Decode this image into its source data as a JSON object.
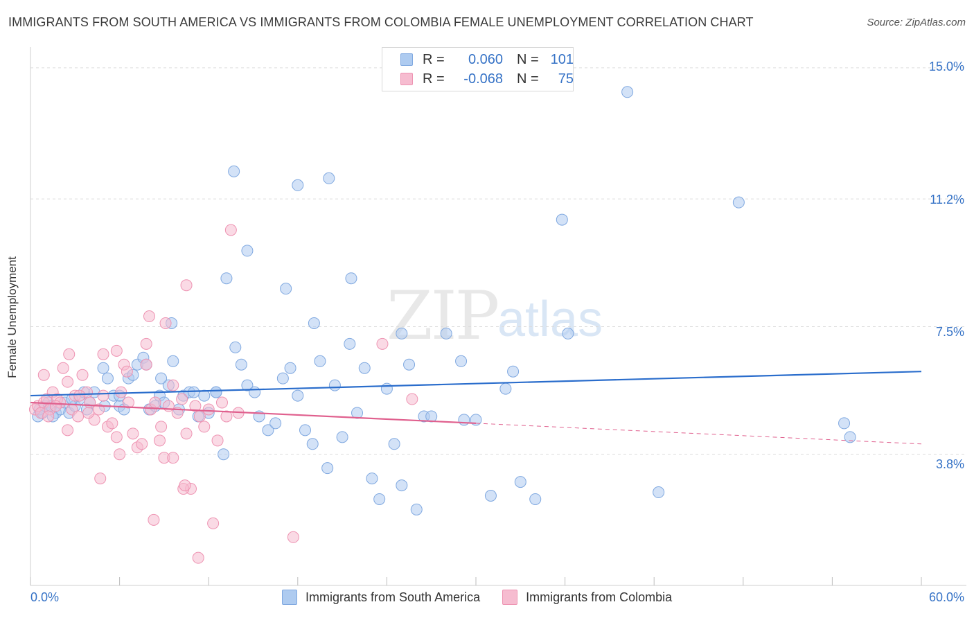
{
  "header": {
    "title": "IMMIGRANTS FROM SOUTH AMERICA VS IMMIGRANTS FROM COLOMBIA FEMALE UNEMPLOYMENT CORRELATION CHART",
    "source": "Source: ZipAtlas.com"
  },
  "watermark": {
    "zip": "ZIP",
    "atlas": "atlas"
  },
  "legend_top": {
    "row1": {
      "r_label": "R =",
      "r_value": "0.060",
      "n_label": "N =",
      "n_value": "101"
    },
    "row2": {
      "r_label": "R =",
      "r_value": "-0.068",
      "n_label": "N =",
      "n_value": "75"
    }
  },
  "colors": {
    "blue_fill": "#aecbf0",
    "blue_stroke": "#7fa8e0",
    "blue_line": "#2a6dcc",
    "pink_fill": "#f6bcd0",
    "pink_stroke": "#ee93b2",
    "pink_line": "#e0608e",
    "grid": "#dcdcdc",
    "axis_text": "#3572c6"
  },
  "chart_data": {
    "type": "scatter",
    "title": "IMMIGRANTS FROM SOUTH AMERICA VS IMMIGRANTS FROM COLOMBIA FEMALE UNEMPLOYMENT CORRELATION CHART",
    "xlabel": "",
    "ylabel": "Female Unemployment",
    "xlim": [
      0,
      60
    ],
    "ylim": [
      0,
      15.4
    ],
    "x_tick_labels": [
      "0.0%",
      "60.0%"
    ],
    "y_ticks": [
      {
        "value": 3.8,
        "label": "3.8%"
      },
      {
        "value": 7.5,
        "label": "7.5%"
      },
      {
        "value": 11.2,
        "label": "11.2%"
      },
      {
        "value": 15.0,
        "label": "15.0%"
      }
    ],
    "series": [
      {
        "name": "Immigrants from South America",
        "color": "blue",
        "R": 0.06,
        "N": 101,
        "trend": {
          "x0": 0,
          "y0": 5.5,
          "x1": 60,
          "y1": 6.2
        },
        "points": [
          [
            0.5,
            4.9
          ],
          [
            0.6,
            5.1
          ],
          [
            0.8,
            5.0
          ],
          [
            1.0,
            5.2
          ],
          [
            1.2,
            5.3
          ],
          [
            1.4,
            5.2
          ],
          [
            1.7,
            5.0
          ],
          [
            2.0,
            5.1
          ],
          [
            2.3,
            5.3
          ],
          [
            2.6,
            5.0
          ],
          [
            3.0,
            5.2
          ],
          [
            3.3,
            5.4
          ],
          [
            3.6,
            5.6
          ],
          [
            4.0,
            5.3
          ],
          [
            4.3,
            5.6
          ],
          [
            4.9,
            6.3
          ],
          [
            5.2,
            6.0
          ],
          [
            5.6,
            5.5
          ],
          [
            6.0,
            5.2
          ],
          [
            6.3,
            5.1
          ],
          [
            6.6,
            6.0
          ],
          [
            6.9,
            6.1
          ],
          [
            7.2,
            6.4
          ],
          [
            7.6,
            6.6
          ],
          [
            7.8,
            6.4
          ],
          [
            8.0,
            5.1
          ],
          [
            8.4,
            5.2
          ],
          [
            8.7,
            5.5
          ],
          [
            9.0,
            5.3
          ],
          [
            9.3,
            5.8
          ],
          [
            9.6,
            6.5
          ],
          [
            10.0,
            5.1
          ],
          [
            10.3,
            5.5
          ],
          [
            10.7,
            5.6
          ],
          [
            11.0,
            5.6
          ],
          [
            11.3,
            4.9
          ],
          [
            11.7,
            5.5
          ],
          [
            12.0,
            5.0
          ],
          [
            12.5,
            5.6
          ],
          [
            13.0,
            3.8
          ],
          [
            13.8,
            6.9
          ],
          [
            14.2,
            6.4
          ],
          [
            14.6,
            5.8
          ],
          [
            15.1,
            5.6
          ],
          [
            15.4,
            4.9
          ],
          [
            16.0,
            4.5
          ],
          [
            16.5,
            4.7
          ],
          [
            17.0,
            6.0
          ],
          [
            17.5,
            6.3
          ],
          [
            18.0,
            5.5
          ],
          [
            18.5,
            4.5
          ],
          [
            19.0,
            4.1
          ],
          [
            19.5,
            6.5
          ],
          [
            20.0,
            3.4
          ],
          [
            20.5,
            5.8
          ],
          [
            21.0,
            4.3
          ],
          [
            21.5,
            7.0
          ],
          [
            22.0,
            5.0
          ],
          [
            22.5,
            6.3
          ],
          [
            23.0,
            3.1
          ],
          [
            23.5,
            2.5
          ],
          [
            24.0,
            5.7
          ],
          [
            24.5,
            4.1
          ],
          [
            25.0,
            2.9
          ],
          [
            25.5,
            6.4
          ],
          [
            26.0,
            2.2
          ],
          [
            26.5,
            4.9
          ],
          [
            27.0,
            4.9
          ],
          [
            28.0,
            7.3
          ],
          [
            29.0,
            6.5
          ],
          [
            30.0,
            4.8
          ],
          [
            31.0,
            2.6
          ],
          [
            32.0,
            5.7
          ],
          [
            33.0,
            3.0
          ],
          [
            34.0,
            2.5
          ],
          [
            6.0,
            5.5
          ],
          [
            5.0,
            5.2
          ],
          [
            1.5,
            4.9
          ],
          [
            2.8,
            5.4
          ],
          [
            3.8,
            5.1
          ],
          [
            13.7,
            12.0
          ],
          [
            18.0,
            11.6
          ],
          [
            20.1,
            11.8
          ],
          [
            14.6,
            9.7
          ],
          [
            17.2,
            8.6
          ],
          [
            13.2,
            8.9
          ],
          [
            21.6,
            8.9
          ],
          [
            9.5,
            7.6
          ],
          [
            19.1,
            7.6
          ],
          [
            25.0,
            7.3
          ],
          [
            35.8,
            10.6
          ],
          [
            40.2,
            14.3
          ],
          [
            47.7,
            11.1
          ],
          [
            29.2,
            4.8
          ],
          [
            42.3,
            2.7
          ],
          [
            54.8,
            4.7
          ],
          [
            55.2,
            4.3
          ],
          [
            32.5,
            6.2
          ],
          [
            36.2,
            7.3
          ],
          [
            12.5,
            5.6
          ],
          [
            8.8,
            6.0
          ]
        ]
      },
      {
        "name": "Immigrants from Colombia",
        "color": "pink",
        "R": -0.068,
        "N": 75,
        "trend": {
          "x0": 0,
          "y0": 5.3,
          "x1": 30,
          "y1": 4.7,
          "dashed_to_x": 60,
          "dashed_to_y": 4.1
        },
        "points": [
          [
            0.3,
            5.1
          ],
          [
            0.5,
            5.2
          ],
          [
            0.7,
            5.0
          ],
          [
            0.9,
            5.3
          ],
          [
            1.1,
            5.4
          ],
          [
            1.3,
            5.1
          ],
          [
            1.5,
            5.6
          ],
          [
            1.8,
            5.4
          ],
          [
            2.0,
            5.3
          ],
          [
            2.2,
            6.3
          ],
          [
            2.5,
            5.9
          ],
          [
            2.8,
            5.1
          ],
          [
            3.0,
            5.5
          ],
          [
            3.2,
            4.9
          ],
          [
            3.5,
            6.1
          ],
          [
            3.8,
            5.6
          ],
          [
            4.0,
            5.3
          ],
          [
            4.3,
            4.8
          ],
          [
            4.6,
            5.1
          ],
          [
            4.9,
            5.5
          ],
          [
            5.2,
            4.6
          ],
          [
            5.5,
            4.7
          ],
          [
            5.8,
            4.3
          ],
          [
            6.0,
            3.8
          ],
          [
            6.3,
            6.4
          ],
          [
            6.6,
            5.3
          ],
          [
            6.9,
            4.4
          ],
          [
            7.2,
            4.0
          ],
          [
            7.5,
            4.1
          ],
          [
            7.8,
            6.4
          ],
          [
            8.1,
            5.1
          ],
          [
            8.4,
            5.3
          ],
          [
            8.7,
            4.2
          ],
          [
            9.0,
            3.7
          ],
          [
            9.3,
            5.2
          ],
          [
            9.6,
            5.8
          ],
          [
            9.9,
            5.0
          ],
          [
            10.2,
            5.4
          ],
          [
            10.5,
            4.4
          ],
          [
            10.8,
            2.8
          ],
          [
            11.1,
            5.2
          ],
          [
            11.4,
            4.9
          ],
          [
            11.7,
            4.6
          ],
          [
            12.0,
            5.1
          ],
          [
            12.3,
            1.8
          ],
          [
            12.6,
            4.2
          ],
          [
            12.9,
            5.3
          ],
          [
            13.2,
            4.9
          ],
          [
            13.5,
            10.3
          ],
          [
            14.0,
            5.0
          ],
          [
            7.8,
            7.0
          ],
          [
            8.0,
            7.8
          ],
          [
            9.1,
            7.6
          ],
          [
            10.5,
            8.7
          ],
          [
            4.9,
            6.7
          ],
          [
            5.8,
            6.8
          ],
          [
            2.6,
            6.7
          ],
          [
            0.9,
            6.1
          ],
          [
            6.5,
            6.2
          ],
          [
            8.8,
            4.6
          ],
          [
            10.3,
            2.8
          ],
          [
            10.4,
            2.9
          ],
          [
            9.6,
            3.7
          ],
          [
            8.3,
            1.9
          ],
          [
            11.3,
            0.8
          ],
          [
            17.7,
            1.4
          ],
          [
            23.7,
            7.0
          ],
          [
            25.7,
            5.4
          ],
          [
            1.7,
            5.2
          ],
          [
            3.9,
            5.0
          ],
          [
            4.7,
            3.1
          ],
          [
            2.5,
            4.5
          ],
          [
            1.2,
            4.9
          ],
          [
            3.3,
            5.5
          ],
          [
            6.1,
            5.6
          ]
        ]
      }
    ]
  },
  "bottom_legend": {
    "blue_label": "Immigrants from South America",
    "pink_label": "Immigrants from Colombia"
  }
}
